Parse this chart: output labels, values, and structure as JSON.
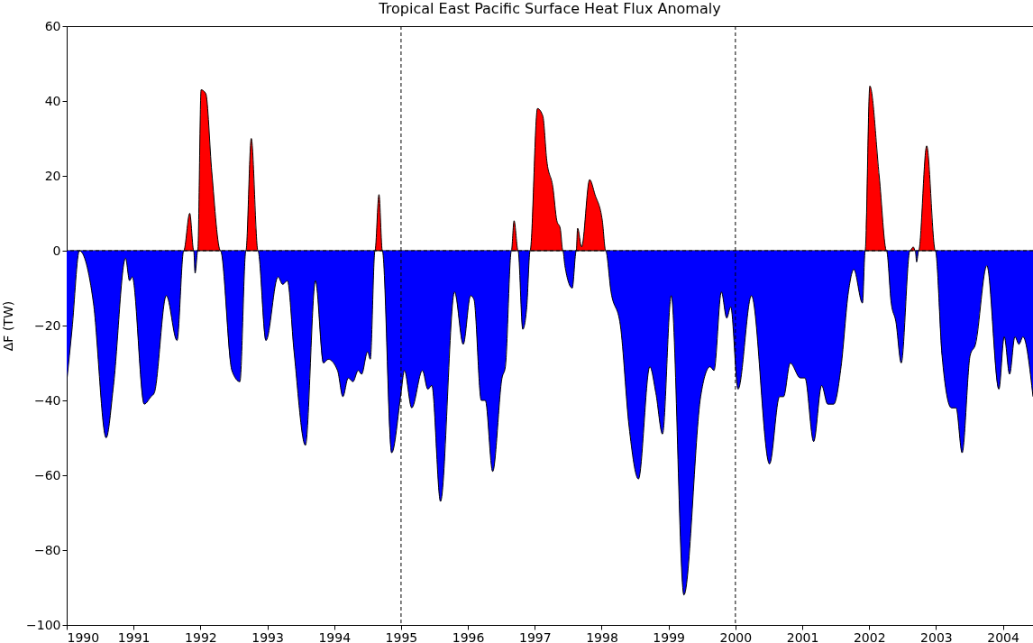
{
  "chart_data": {
    "type": "area",
    "title": "Tropical East Pacific Surface Heat Flux Anomaly",
    "ylabel": "ΔF (TW)",
    "x": [
      1990.0,
      1990.08,
      1990.19,
      1990.4,
      1990.59,
      1990.7,
      1990.88,
      1990.94,
      1990.98,
      1991.16,
      1991.26,
      1991.31,
      1991.49,
      1991.65,
      1991.75,
      1991.84,
      1991.9,
      1991.92,
      1991.96,
      1992.01,
      1992.08,
      1992.17,
      1992.3,
      1992.47,
      1992.59,
      1992.68,
      1992.76,
      1992.86,
      1992.98,
      1993.16,
      1993.23,
      1993.3,
      1993.4,
      1993.57,
      1993.72,
      1993.84,
      1993.91,
      1994.05,
      1994.13,
      1994.21,
      1994.28,
      1994.36,
      1994.41,
      1994.5,
      1994.54,
      1994.61,
      1994.67,
      1994.72,
      1994.86,
      1995.0,
      1995.05,
      1995.16,
      1995.32,
      1995.4,
      1995.46,
      1995.59,
      1995.8,
      1995.93,
      1996.04,
      1996.09,
      1996.2,
      1996.26,
      1996.37,
      1996.51,
      1996.56,
      1996.65,
      1996.69,
      1996.75,
      1996.82,
      1996.88,
      1996.93,
      1997.04,
      1997.12,
      1997.18,
      1997.27,
      1997.33,
      1997.38,
      1997.42,
      1997.45,
      1997.56,
      1997.62,
      1997.64,
      1997.7,
      1997.82,
      1997.9,
      1998.01,
      1998.06,
      1998.14,
      1998.28,
      1998.41,
      1998.55,
      1998.72,
      1998.81,
      1998.91,
      1999.04,
      1999.23,
      1999.48,
      1999.62,
      1999.68,
      1999.79,
      1999.87,
      1999.93,
      2000.04,
      2000.24,
      2000.51,
      2000.66,
      2000.72,
      2000.82,
      2000.97,
      2001.04,
      2001.17,
      2001.29,
      2001.38,
      2001.47,
      2001.58,
      2001.69,
      2001.77,
      2001.9,
      2001.94,
      2002.01,
      2002.15,
      2002.26,
      2002.33,
      2002.4,
      2002.48,
      2002.61,
      2002.66,
      2002.69,
      2002.71,
      2002.74,
      2002.86,
      2002.99,
      2003.09,
      2003.23,
      2003.3,
      2003.39,
      2003.51,
      2003.59,
      2003.76,
      2003.94,
      2004.02,
      2004.1,
      2004.18,
      2004.24,
      2004.3,
      2004.45
    ],
    "series": [
      {
        "color": "#ff0000",
        "values": [
          0,
          0,
          0,
          0,
          0,
          0,
          0,
          0,
          0,
          0,
          0,
          0,
          0,
          0,
          0,
          10,
          0,
          0,
          0,
          43,
          42,
          21,
          0,
          0,
          0,
          0,
          30,
          0,
          0,
          0,
          0,
          0,
          0,
          0,
          0,
          0,
          0,
          0,
          0,
          0,
          0,
          0,
          0,
          0,
          0,
          0,
          15,
          0,
          0,
          0,
          0,
          0,
          0,
          0,
          0,
          0,
          0,
          0,
          0,
          0,
          0,
          0,
          0,
          0,
          0,
          0,
          8,
          0,
          0,
          0,
          0,
          38,
          36,
          24,
          17,
          8,
          6,
          0,
          0,
          0,
          0,
          6,
          1,
          19,
          15,
          8,
          0,
          0,
          0,
          0,
          0,
          0,
          0,
          0,
          0,
          0,
          0,
          0,
          0,
          0,
          0,
          0,
          0,
          0,
          0,
          0,
          0,
          0,
          0,
          0,
          0,
          0,
          0,
          0,
          0,
          0,
          0,
          0,
          0,
          44,
          20,
          0,
          0,
          0,
          0,
          0,
          1,
          0,
          0,
          0,
          28,
          0,
          0,
          0,
          0,
          0,
          0,
          0,
          0,
          0,
          0,
          0,
          0,
          0,
          0,
          0
        ]
      },
      {
        "color": "#0000ff",
        "values": [
          -35,
          -21,
          0,
          -14,
          -50,
          -36,
          -2,
          -8,
          -7,
          -41,
          -39,
          -38,
          -12,
          -24,
          0,
          0,
          0,
          -6,
          0,
          0,
          0,
          0,
          0,
          -32,
          -35,
          0,
          0,
          0,
          -24,
          -7,
          -9,
          -8,
          -27,
          -52,
          -8,
          -30,
          -29,
          -32,
          -39,
          -34,
          -35,
          -32,
          -33,
          -27,
          -29,
          0,
          0,
          0,
          -54,
          -38,
          -32,
          -42,
          -32,
          -37,
          -36,
          -67,
          -11,
          -25,
          -12,
          -13,
          -40,
          -40,
          -59,
          -34,
          -31,
          0,
          0,
          0,
          -21,
          -15,
          0,
          0,
          0,
          0,
          0,
          0,
          0,
          0,
          -4,
          -10,
          0,
          0,
          0,
          0,
          0,
          0,
          0,
          -11,
          -20,
          -47,
          -61,
          -31,
          -38,
          -49,
          -12,
          -92,
          -39,
          -31,
          -32,
          -11,
          -18,
          -15,
          -37,
          -12,
          -57,
          -39,
          -39,
          -30,
          -34,
          -34,
          -51,
          -36,
          -41,
          -41,
          -31,
          -11,
          -5,
          -14,
          0,
          0,
          0,
          0,
          -14,
          -19,
          -30,
          0,
          0,
          0,
          -3,
          0,
          0,
          0,
          -28,
          -42,
          -42,
          -54,
          -28,
          -25,
          -4,
          -37,
          -23,
          -33,
          -23,
          -25,
          -23,
          -39
        ]
      }
    ],
    "xlim": [
      1990,
      2004.45
    ],
    "xticks": [
      1990,
      1991,
      1992,
      1993,
      1994,
      1995,
      1996,
      1997,
      1998,
      1999,
      2000,
      2001,
      2002,
      2003,
      2004
    ],
    "ylim": [
      -100,
      60
    ],
    "yticks": [
      -100,
      -80,
      -60,
      -40,
      -20,
      0,
      20,
      40,
      60
    ],
    "ref_lines": [
      {
        "axis": "y",
        "value": 0,
        "color": "#000000",
        "line_style": "dashed"
      },
      {
        "axis": "x",
        "value": 1995,
        "color": "#000000",
        "line_style": "dashed"
      },
      {
        "axis": "x",
        "value": 2000,
        "color": "#000000",
        "line_style": "dashed"
      }
    ],
    "grid": false
  }
}
